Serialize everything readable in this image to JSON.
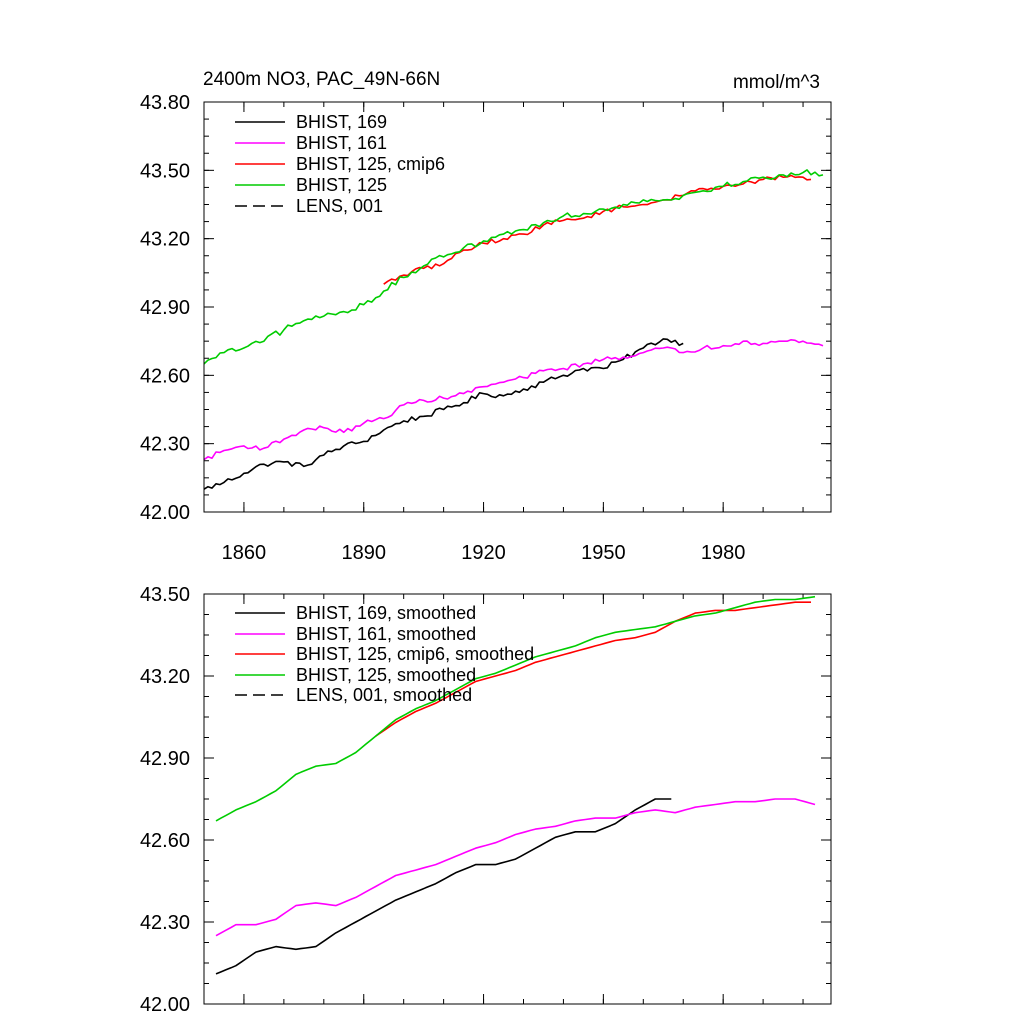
{
  "chart_data": [
    {
      "type": "line",
      "title": "2400m NO3, PAC_49N-66N",
      "units": "mmol/m^3",
      "xlim": [
        1850,
        2007
      ],
      "ylim": [
        42.0,
        43.8
      ],
      "x_ticks": [
        1860,
        1890,
        1920,
        1950,
        1980
      ],
      "x_tick_labels": [
        "1860",
        "1890",
        "1920",
        "1950",
        "1980"
      ],
      "y_ticks": [
        42.0,
        42.3,
        42.6,
        42.9,
        43.2,
        43.5,
        43.8
      ],
      "y_tick_labels": [
        "42.00",
        "42.30",
        "42.60",
        "42.90",
        "43.20",
        "43.50",
        "43.80"
      ],
      "legend_position": "top-left",
      "grid": false,
      "legend": [
        {
          "label": "BHIST, 169",
          "color": "#000000",
          "dash": "solid"
        },
        {
          "label": "BHIST, 161",
          "color": "#ff00ff",
          "dash": "solid"
        },
        {
          "label": "BHIST, 125, cmip6",
          "color": "#ff0000",
          "dash": "solid"
        },
        {
          "label": "BHIST, 125",
          "color": "#00cc00",
          "dash": "solid"
        },
        {
          "label": "LENS, 001",
          "color": "#000000",
          "dash": "dashed"
        }
      ],
      "series": [
        {
          "name": "BHIST, 169",
          "color": "#000000",
          "noise": 0.012,
          "x": [
            1850,
            1855,
            1860,
            1865,
            1870,
            1875,
            1880,
            1885,
            1890,
            1895,
            1900,
            1905,
            1910,
            1915,
            1920,
            1925,
            1930,
            1935,
            1940,
            1945,
            1950,
            1955,
            1960,
            1965,
            1970
          ],
          "y": [
            42.1,
            42.13,
            42.17,
            42.21,
            42.22,
            42.2,
            42.25,
            42.29,
            42.31,
            42.36,
            42.4,
            42.42,
            42.45,
            42.48,
            42.52,
            42.51,
            42.54,
            42.57,
            42.6,
            42.63,
            42.63,
            42.67,
            42.72,
            42.76,
            42.74
          ]
        },
        {
          "name": "BHIST, 161",
          "color": "#ff00ff",
          "noise": 0.01,
          "x": [
            1850,
            1855,
            1860,
            1865,
            1870,
            1875,
            1880,
            1885,
            1890,
            1895,
            1900,
            1905,
            1910,
            1915,
            1920,
            1925,
            1930,
            1935,
            1940,
            1945,
            1950,
            1955,
            1960,
            1965,
            1970,
            1975,
            1980,
            1985,
            1990,
            1995,
            2000,
            2005
          ],
          "y": [
            42.23,
            42.27,
            42.29,
            42.28,
            42.32,
            42.36,
            42.37,
            42.35,
            42.39,
            42.41,
            42.47,
            42.49,
            42.5,
            42.52,
            42.55,
            42.57,
            42.59,
            42.62,
            42.63,
            42.65,
            42.67,
            42.68,
            42.7,
            42.72,
            42.7,
            42.72,
            42.73,
            42.75,
            42.74,
            42.75,
            42.75,
            42.73
          ]
        },
        {
          "name": "BHIST, 125, cmip6",
          "color": "#ff0000",
          "noise": 0.01,
          "x": [
            1895,
            1900,
            1905,
            1910,
            1915,
            1920,
            1925,
            1930,
            1935,
            1940,
            1945,
            1950,
            1955,
            1960,
            1965,
            1970,
            1975,
            1980,
            1985,
            1990,
            1995,
            2000,
            2002
          ],
          "y": [
            43.0,
            43.04,
            43.07,
            43.09,
            43.15,
            43.18,
            43.2,
            43.22,
            43.26,
            43.28,
            43.29,
            43.32,
            43.34,
            43.35,
            43.37,
            43.39,
            43.42,
            43.43,
            43.44,
            43.46,
            43.47,
            43.47,
            43.46
          ]
        },
        {
          "name": "BHIST, 125",
          "color": "#00cc00",
          "noise": 0.014,
          "x": [
            1850,
            1855,
            1860,
            1865,
            1870,
            1875,
            1880,
            1885,
            1890,
            1895,
            1900,
            1905,
            1910,
            1915,
            1920,
            1925,
            1930,
            1935,
            1940,
            1945,
            1950,
            1955,
            1960,
            1965,
            1970,
            1975,
            1980,
            1985,
            1990,
            1995,
            2000,
            2005
          ],
          "y": [
            42.65,
            42.7,
            42.72,
            42.75,
            42.8,
            42.84,
            42.86,
            42.88,
            42.91,
            42.97,
            43.03,
            43.08,
            43.12,
            43.16,
            43.19,
            43.22,
            43.24,
            43.27,
            43.3,
            43.31,
            43.33,
            43.35,
            43.37,
            43.37,
            43.39,
            43.41,
            43.43,
            43.45,
            43.47,
            43.48,
            43.49,
            43.48
          ]
        }
      ]
    },
    {
      "type": "line",
      "title": "",
      "xlim": [
        1850,
        2007
      ],
      "ylim": [
        42.0,
        43.5
      ],
      "x_ticks": [
        1860,
        1890,
        1920,
        1950,
        1980
      ],
      "x_tick_labels": [],
      "y_ticks": [
        42.0,
        42.3,
        42.6,
        42.9,
        43.2,
        43.5
      ],
      "y_tick_labels": [
        "42.00",
        "42.30",
        "42.60",
        "42.90",
        "43.20",
        "43.50"
      ],
      "legend_position": "top-left",
      "grid": false,
      "legend": [
        {
          "label": "BHIST, 169, smoothed",
          "color": "#000000",
          "dash": "solid"
        },
        {
          "label": "BHIST, 161, smoothed",
          "color": "#ff00ff",
          "dash": "solid"
        },
        {
          "label": "BHIST, 125, cmip6, smoothed",
          "color": "#ff0000",
          "dash": "solid"
        },
        {
          "label": "BHIST, 125, smoothed",
          "color": "#00cc00",
          "dash": "solid"
        },
        {
          "label": "LENS, 001, smoothed",
          "color": "#000000",
          "dash": "dashed"
        }
      ],
      "series": [
        {
          "name": "BHIST, 169, smoothed",
          "color": "#000000",
          "noise": 0,
          "x": [
            1853,
            1858,
            1863,
            1868,
            1873,
            1878,
            1883,
            1888,
            1893,
            1898,
            1903,
            1908,
            1913,
            1918,
            1923,
            1928,
            1933,
            1938,
            1943,
            1948,
            1953,
            1958,
            1963,
            1967
          ],
          "y": [
            42.11,
            42.14,
            42.19,
            42.21,
            42.2,
            42.21,
            42.26,
            42.3,
            42.34,
            42.38,
            42.41,
            42.44,
            42.48,
            42.51,
            42.51,
            42.53,
            42.57,
            42.61,
            42.63,
            42.63,
            42.66,
            42.71,
            42.75,
            42.75
          ]
        },
        {
          "name": "BHIST, 161, smoothed",
          "color": "#ff00ff",
          "noise": 0,
          "x": [
            1853,
            1858,
            1863,
            1868,
            1873,
            1878,
            1883,
            1888,
            1893,
            1898,
            1903,
            1908,
            1913,
            1918,
            1923,
            1928,
            1933,
            1938,
            1943,
            1948,
            1953,
            1958,
            1963,
            1968,
            1973,
            1978,
            1983,
            1988,
            1993,
            1998,
            2003
          ],
          "y": [
            42.25,
            42.29,
            42.29,
            42.31,
            42.36,
            42.37,
            42.36,
            42.39,
            42.43,
            42.47,
            42.49,
            42.51,
            42.54,
            42.57,
            42.59,
            42.62,
            42.64,
            42.65,
            42.67,
            42.68,
            42.68,
            42.7,
            42.71,
            42.7,
            42.72,
            42.73,
            42.74,
            42.74,
            42.75,
            42.75,
            42.73
          ]
        },
        {
          "name": "BHIST, 125, cmip6, smoothed",
          "color": "#ff0000",
          "noise": 0,
          "x": [
            1893,
            1898,
            1903,
            1908,
            1913,
            1918,
            1923,
            1928,
            1933,
            1938,
            1943,
            1948,
            1953,
            1958,
            1963,
            1968,
            1973,
            1978,
            1983,
            1988,
            1993,
            1998,
            2002
          ],
          "y": [
            42.98,
            43.03,
            43.07,
            43.1,
            43.14,
            43.18,
            43.2,
            43.22,
            43.25,
            43.27,
            43.29,
            43.31,
            43.33,
            43.34,
            43.36,
            43.4,
            43.43,
            43.44,
            43.44,
            43.45,
            43.46,
            43.47,
            43.47
          ]
        },
        {
          "name": "BHIST, 125, smoothed",
          "color": "#00cc00",
          "noise": 0,
          "x": [
            1853,
            1858,
            1863,
            1868,
            1873,
            1878,
            1883,
            1888,
            1893,
            1898,
            1903,
            1908,
            1913,
            1918,
            1923,
            1928,
            1933,
            1938,
            1943,
            1948,
            1953,
            1958,
            1963,
            1968,
            1973,
            1978,
            1983,
            1988,
            1993,
            1998,
            2003
          ],
          "y": [
            42.67,
            42.71,
            42.74,
            42.78,
            42.84,
            42.87,
            42.88,
            42.92,
            42.98,
            43.04,
            43.08,
            43.11,
            43.15,
            43.19,
            43.21,
            43.24,
            43.27,
            43.29,
            43.31,
            43.34,
            43.36,
            43.37,
            43.38,
            43.4,
            43.42,
            43.43,
            43.45,
            43.47,
            43.48,
            43.48,
            43.49
          ]
        }
      ]
    }
  ]
}
